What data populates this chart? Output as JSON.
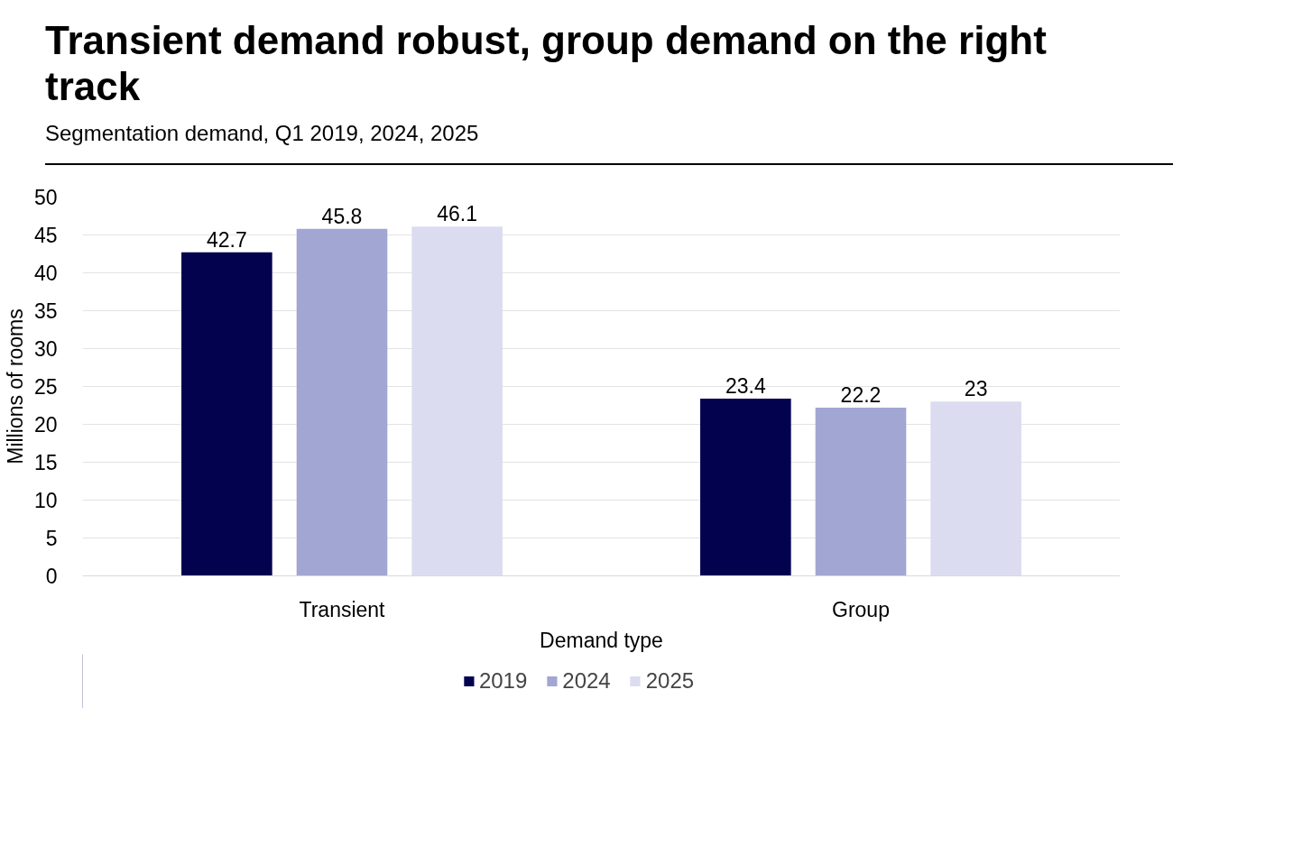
{
  "chart_data": {
    "type": "bar",
    "title": "Transient demand robust, group demand on the right track",
    "subtitle": "Segmentation demand, Q1 2019, 2024, 2025",
    "xlabel": "Demand type",
    "ylabel": "Millions of rooms",
    "categories": [
      "Transient",
      "Group"
    ],
    "series": [
      {
        "name": "2019",
        "color": "#02024f",
        "values": [
          42.7,
          23.4
        ]
      },
      {
        "name": "2024",
        "color": "#a2a6d3",
        "values": [
          45.8,
          22.2
        ]
      },
      {
        "name": "2025",
        "color": "#dcdcf0",
        "values": [
          46.1,
          23
        ]
      }
    ],
    "ylim": [
      0,
      50
    ],
    "yticks": [
      0,
      5,
      10,
      15,
      20,
      25,
      30,
      35,
      40,
      45,
      50
    ],
    "grid": "y",
    "legend": "bottom",
    "data_labels": true
  }
}
